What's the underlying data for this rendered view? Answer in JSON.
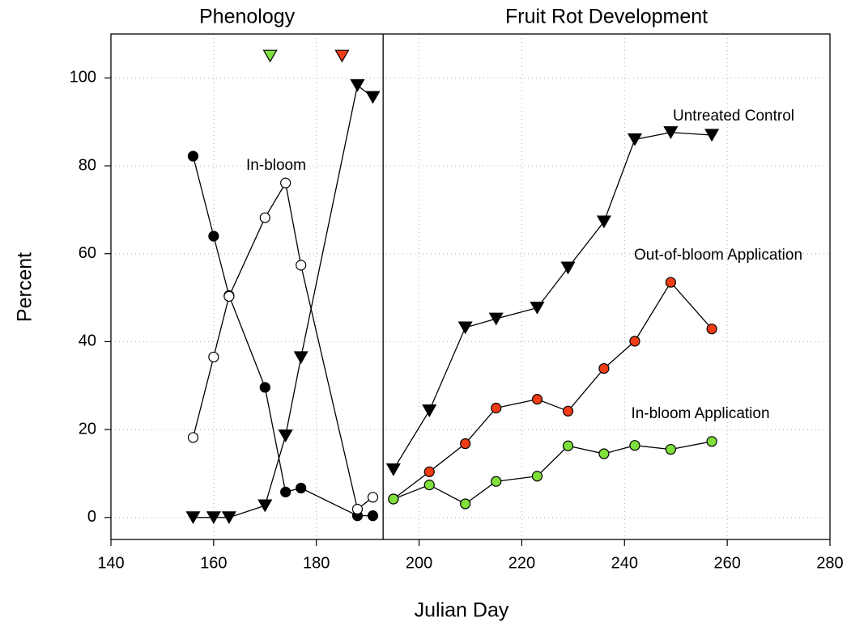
{
  "chart_data": {
    "type": "line",
    "panel_titles": [
      "Phenology",
      "Fruit Rot Development"
    ],
    "xlabel": "Julian Day",
    "ylabel": "Percent",
    "xlim": [
      140,
      280
    ],
    "ylim": [
      -5,
      110
    ],
    "divider": 193,
    "xticks": [
      140,
      160,
      180,
      200,
      220,
      240,
      260,
      280
    ],
    "yticks": [
      0,
      20,
      40,
      60,
      80,
      100
    ],
    "grid": true,
    "annotations": [
      "In-bloom",
      "Untreated Control",
      "Out-of-bloom Application",
      "In-bloom Application"
    ],
    "series": [
      {
        "marker": "circle",
        "color": "#000000",
        "x": [
          156,
          160,
          163,
          170,
          174,
          177,
          188,
          191
        ],
        "values": [
          82.2,
          64,
          50.5,
          29.6,
          5.8,
          6.7,
          0.4,
          0.4
        ]
      },
      {
        "marker": "circle",
        "color": "#ffffff",
        "x": [
          156,
          160,
          163,
          170,
          174,
          177,
          188,
          191
        ],
        "values": [
          18.2,
          36.5,
          50.3,
          68.2,
          76.1,
          57.4,
          1.9,
          4.6
        ]
      },
      {
        "marker": "triangle-down",
        "color": "#000000",
        "x": [
          156,
          160,
          163,
          170,
          174,
          177,
          188,
          191
        ],
        "values": [
          0,
          0,
          0,
          2.7,
          18.6,
          36.4,
          98.3,
          95.6
        ]
      },
      {
        "marker": "triangle-down",
        "color": "#7fe03c",
        "line": false,
        "x": [
          171
        ],
        "values": [
          105
        ]
      },
      {
        "marker": "triangle-down",
        "color": "#f03c14",
        "line": false,
        "x": [
          185
        ],
        "values": [
          105
        ]
      },
      {
        "marker": "triangle-down",
        "color": "#000000",
        "x": [
          195,
          202,
          209,
          215,
          223,
          229,
          236,
          242,
          249,
          257
        ],
        "values": [
          10.9,
          24.3,
          43.2,
          45.2,
          47.7,
          56.8,
          67.3,
          86,
          87.6,
          87
        ]
      },
      {
        "marker": "circle",
        "color": "#f03c14",
        "x": [
          195,
          202,
          209,
          215,
          223,
          229,
          236,
          242,
          249,
          257
        ],
        "values": [
          4.2,
          10.4,
          16.8,
          24.9,
          26.9,
          24.2,
          33.9,
          40.1,
          53.5,
          42.9
        ]
      },
      {
        "marker": "circle",
        "color": "#7fe03c",
        "x": [
          195,
          202,
          209,
          215,
          223,
          229,
          236,
          242,
          249,
          257
        ],
        "values": [
          4.2,
          7.4,
          3.1,
          8.2,
          9.4,
          16.3,
          14.5,
          16.4,
          15.5,
          17.3
        ]
      }
    ]
  }
}
